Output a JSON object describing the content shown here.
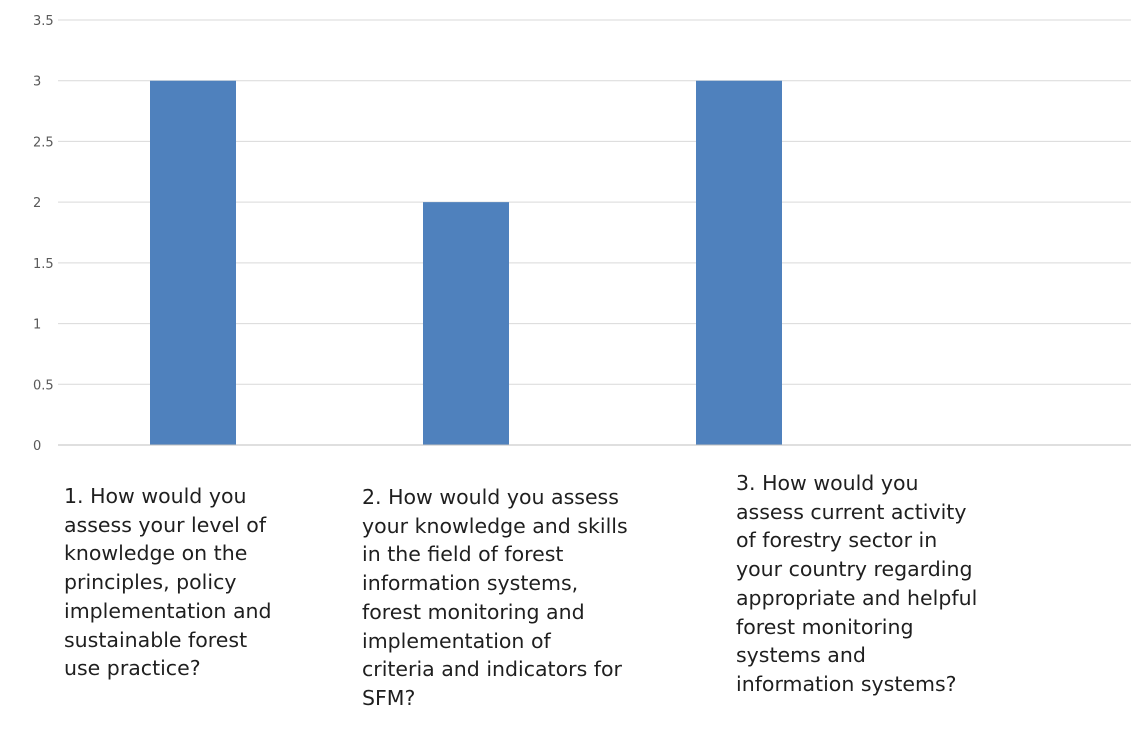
{
  "chart_data": {
    "type": "bar",
    "categories": [
      "1. How would you\nassess your level of\nknowledge on the\nprinciples, policy\nimplementation and\nsustainable forest\nuse practice?",
      "2. How would you assess\nyour knowledge and skills\nin the field of forest\ninformation systems,\nforest monitoring and\nimplementation of\ncriteria and indicators for\nSFM?",
      "3. How would you\nassess current activity\nof forestry sector in\nyour country regarding\nappropriate and helpful\nforest monitoring\nsystems and\ninformation systems?"
    ],
    "values": [
      3,
      2,
      3
    ],
    "ylim": [
      0,
      3.5
    ],
    "yticks": [
      "0",
      "0.5",
      "1",
      "1.5",
      "2",
      "2.5",
      "3",
      "3.5"
    ],
    "grid": true,
    "bar_color": "#4f81bd",
    "grid_color": "#d9d9d9",
    "axis_color": "#bfbfbf"
  }
}
